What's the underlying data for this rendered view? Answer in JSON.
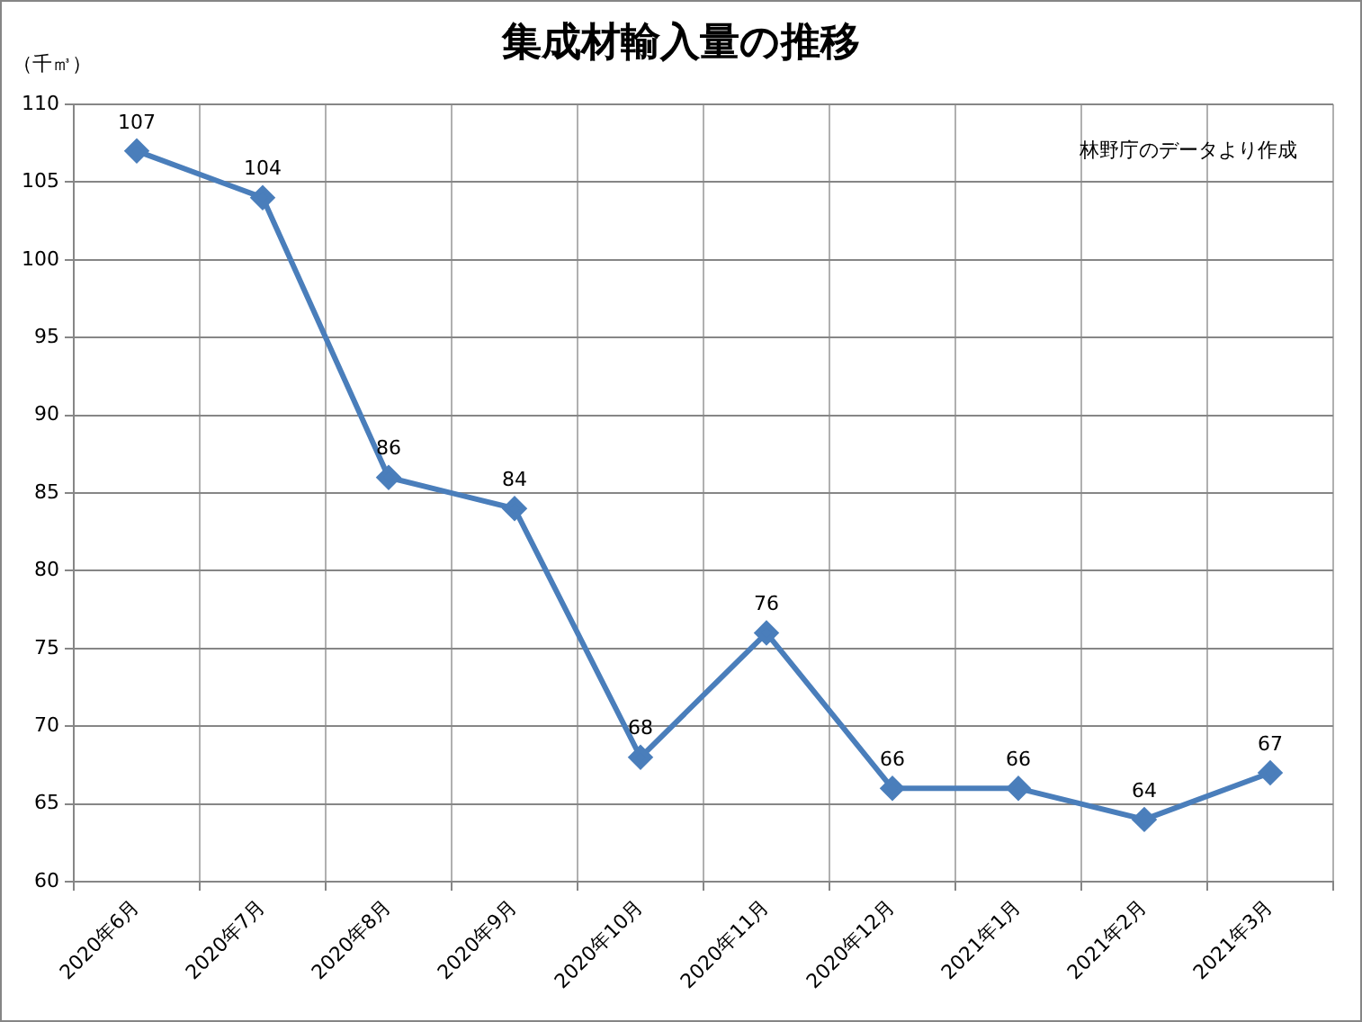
{
  "chart_data": {
    "type": "line",
    "title": "集成材輸入量の推移",
    "ylabel": "（千㎥）",
    "categories": [
      "2020年6月",
      "2020年7月",
      "2020年8月",
      "2020年9月",
      "2020年10月",
      "2020年11月",
      "2020年12月",
      "2021年1月",
      "2021年2月",
      "2021年3月"
    ],
    "series": [
      {
        "color": "#4a7ebb",
        "values": [
          107,
          104,
          86,
          84,
          68,
          76,
          66,
          66,
          64,
          67
        ]
      }
    ],
    "ylim": [
      60,
      110
    ],
    "yticks": [
      60,
      65,
      70,
      75,
      80,
      85,
      90,
      95,
      100,
      105,
      110
    ],
    "grid": true,
    "legend": false,
    "marker": "diamond",
    "line_style": "solid",
    "data_labels": true,
    "annotations": [
      "林野庁のデータより作成"
    ]
  }
}
